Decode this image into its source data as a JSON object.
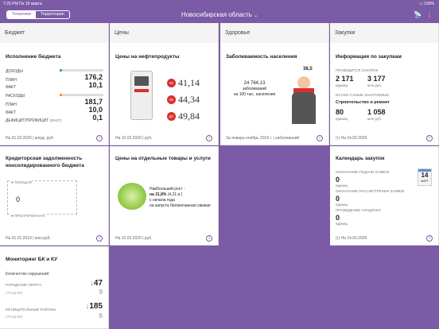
{
  "status": {
    "time": "7:25 PM",
    "date": "Пн 18 марта",
    "battery": "●"
  },
  "topbar": {
    "tab_topics": "Тематики",
    "tab_territory": "Территория",
    "region": "Новосибирская область",
    "chevron": "⌄"
  },
  "columns": {
    "budget": "Бюджет",
    "prices": "Цены",
    "health": "Здоровье",
    "purchases": "Закупки"
  },
  "budget_exec": {
    "title": "Исполнение бюджета",
    "income": "ДОХОДЫ",
    "plan": "ПЛАН",
    "fact": "ФАКТ",
    "income_plan": "176,2",
    "income_fact": "10,1",
    "expense": "РАСХОДЫ",
    "expense_plan": "181,7",
    "expense_fact": "10,0",
    "deficit": "ДЕФИЦИТ/ПРОФИЦИТ",
    "deficit_note": "(ФАКТ)",
    "deficit_val": "0,1",
    "footer": "На 01.02.2020 | млрд. руб."
  },
  "fuel": {
    "title": "Цены на нефтепродукты",
    "items": [
      {
        "tag": "92",
        "price": "41,14"
      },
      {
        "tag": "95",
        "price": "44,34"
      },
      {
        "tag": "ДТ",
        "price": "49,84"
      }
    ],
    "footer": "На 10.03.2020 | руб."
  },
  "morbidity": {
    "title": "Заболеваемость населения",
    "value": "24 764,13",
    "note1": "заболеваний",
    "note2": "на 100 тыс. населения",
    "temp": "38,5",
    "footer": "За январь-ноябрь 2019 г. | заболеваний"
  },
  "procurement": {
    "title": "Информация по закупкам",
    "ongoing": "ПРОВОДИТСЯ ЗАКУПОК",
    "ongoing_count": "2 171",
    "ongoing_count_unit": "единиц",
    "ongoing_sum": "3 177",
    "ongoing_sum_unit": "млн руб.",
    "planned": "ИЗ НИХ САМЫЕ ЗАКУПАЕМЫЕ",
    "category": "Строительство и ремонт",
    "cat_count": "80",
    "cat_count_unit": "единиц",
    "cat_sum": "1 058",
    "cat_sum_unit": "млн руб.",
    "footer": "На 14.03.2020"
  },
  "debt": {
    "title_line1": "Кредиторская задолженность",
    "title_line2": "консолидированного бюджета",
    "current": "ТЕКУЩАЯ",
    "overdue": "ПРОСРОЧЕННАЯ",
    "value": "0",
    "footer": "На 01.01.2019 | млн.руб."
  },
  "goods": {
    "title": "Цены на отдельные товары и услуги",
    "growth_label": "Наибольший рост",
    "growth": "на 21,8%",
    "growth_abs": "(4,31 р.)",
    "since": "с начала года",
    "product": "на капуста белокочанная свежая",
    "footer": "На 10.03.2020 | руб."
  },
  "calendar": {
    "title": "Календарь закупок",
    "deadline": "ОКОНЧАНИЕ ПОДАЧИ ЗАЯВОК",
    "deadline_val": "0",
    "deadline_unit": "единиц",
    "review": "ОКОНЧАНИЕ РАССМОТРЕНИЯ ЗАЯВОК",
    "review_val": "0",
    "review_unit": "единиц",
    "auction": "ПРОВЕДЕНИЕ АУКЦИОНА",
    "auction_val": "0",
    "auction_unit": "единиц",
    "day": "14",
    "month": "МАРТ",
    "footer": "На 14.03.2020"
  },
  "monitoring": {
    "title": "Мониторинг БК и КУ",
    "violations": "Количество нарушений",
    "urban": "ГОРОДСКИЕ ОКРУГА",
    "urban_val": "47",
    "urban_sub": "9",
    "urban_sub_lbl": "СРЕДНЕЕ",
    "municipal": "МУНИЦИПАЛЬНЫЕ РАЙОНЫ",
    "municipal_val": "185",
    "municipal_sub": "6",
    "municipal_sub_lbl": "СРЕДНЕЕ"
  },
  "colors": {
    "accent": "#7b5aa6",
    "red": "#d9302c",
    "green": "#4caf50",
    "orange": "#f39c12"
  }
}
